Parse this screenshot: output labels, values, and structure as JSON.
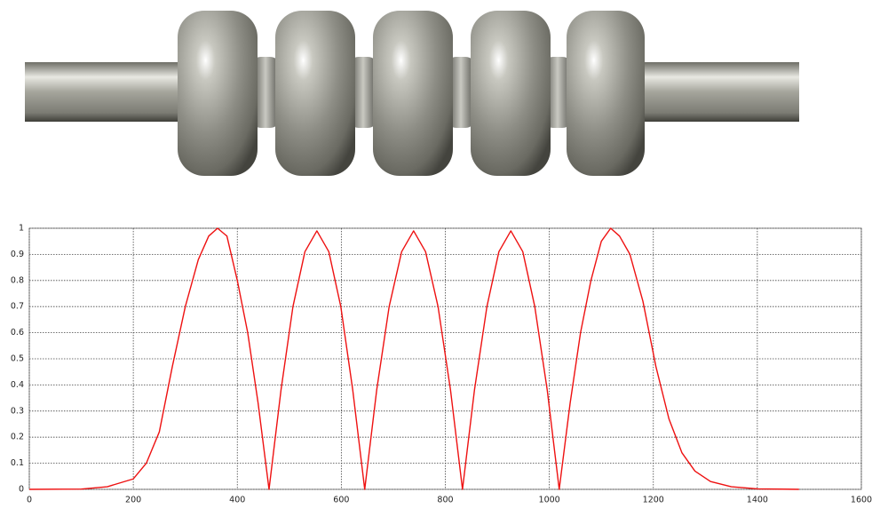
{
  "chart_data": {
    "type": "line",
    "x": [
      0,
      100,
      150,
      200,
      225,
      250,
      275,
      300,
      325,
      345,
      362,
      380,
      400,
      420,
      440,
      461,
      484,
      507,
      530,
      553,
      576,
      599,
      622,
      645,
      668,
      692,
      716,
      739,
      762,
      786,
      810,
      833,
      856,
      880,
      903,
      926,
      949,
      972,
      996,
      1019,
      1040,
      1060,
      1080,
      1100,
      1118,
      1135,
      1155,
      1180,
      1205,
      1230,
      1255,
      1280,
      1310,
      1350,
      1400,
      1480
    ],
    "values": [
      0,
      0.001,
      0.01,
      0.04,
      0.1,
      0.22,
      0.47,
      0.7,
      0.88,
      0.97,
      1,
      0.97,
      0.8,
      0.6,
      0.33,
      0,
      0.38,
      0.7,
      0.91,
      0.99,
      0.91,
      0.7,
      0.38,
      0,
      0.38,
      0.7,
      0.91,
      0.99,
      0.91,
      0.7,
      0.38,
      0,
      0.38,
      0.7,
      0.91,
      0.99,
      0.91,
      0.7,
      0.38,
      0,
      0.33,
      0.6,
      0.8,
      0.95,
      1,
      0.97,
      0.9,
      0.72,
      0.47,
      0.27,
      0.14,
      0.07,
      0.03,
      0.01,
      0.002,
      0
    ],
    "color": "#ee1111",
    "xlim": [
      0,
      1600
    ],
    "xticks": [
      0,
      200,
      400,
      600,
      800,
      1000,
      1200,
      1400,
      1600
    ],
    "ylim": [
      0,
      1
    ],
    "yticks": [
      0,
      0.1,
      0.2,
      0.3,
      0.4,
      0.5,
      0.6,
      0.7,
      0.8,
      0.9,
      1
    ],
    "grid": true
  }
}
